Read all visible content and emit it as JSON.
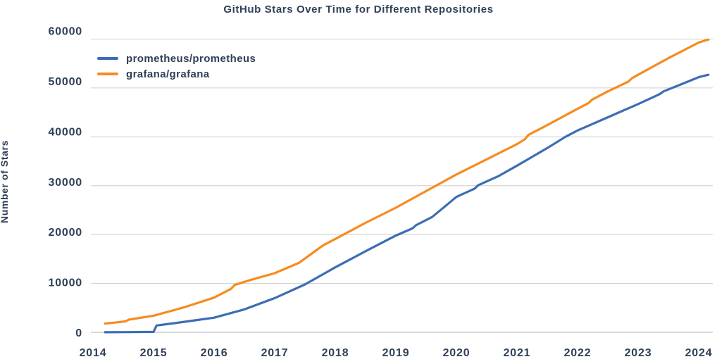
{
  "title": "GitHub Stars Over Time for Different Repositories",
  "colors": {
    "text": "#2f4058",
    "grid": "#cdcdcd",
    "zero_line": "#b3b3b3",
    "background": "#ffffff",
    "prometheus_blue": "#3c6db4",
    "grafana_orange": "#f78b1f"
  },
  "chart_data": {
    "type": "line",
    "title": "GitHub Stars Over Time for Different Repositories",
    "xlabel": "",
    "ylabel": "Number of Stars",
    "x_ticks": [
      2014,
      2015,
      2016,
      2017,
      2018,
      2019,
      2020,
      2021,
      2022,
      2023,
      2024
    ],
    "y_ticks": [
      0,
      10000,
      20000,
      30000,
      40000,
      50000,
      60000
    ],
    "xlim": [
      2013.97,
      2024.23
    ],
    "ylim": [
      0,
      60000
    ],
    "grid": "horizontal-only",
    "legend_position": "upper-left-inside",
    "series": [
      {
        "name": "prometheus/prometheus",
        "color": "#3c6db4",
        "points": [
          [
            2014.2,
            20
          ],
          [
            2014.6,
            50
          ],
          [
            2015.0,
            90
          ],
          [
            2015.05,
            1400
          ],
          [
            2015.3,
            1800
          ],
          [
            2015.6,
            2300
          ],
          [
            2016.0,
            3000
          ],
          [
            2016.5,
            4700
          ],
          [
            2017.0,
            7000
          ],
          [
            2017.5,
            9800
          ],
          [
            2018.0,
            13300
          ],
          [
            2018.5,
            16600
          ],
          [
            2019.0,
            19800
          ],
          [
            2019.28,
            21300
          ],
          [
            2019.33,
            21900
          ],
          [
            2019.6,
            23600
          ],
          [
            2020.0,
            27700
          ],
          [
            2020.3,
            29400
          ],
          [
            2020.36,
            30100
          ],
          [
            2020.7,
            32000
          ],
          [
            2021.0,
            34100
          ],
          [
            2021.5,
            37700
          ],
          [
            2021.8,
            40000
          ],
          [
            2022.0,
            41300
          ],
          [
            2022.5,
            44000
          ],
          [
            2023.0,
            46700
          ],
          [
            2023.35,
            48700
          ],
          [
            2023.42,
            49300
          ],
          [
            2023.7,
            50700
          ],
          [
            2024.0,
            52200
          ],
          [
            2024.16,
            52700
          ]
        ]
      },
      {
        "name": "grafana/grafana",
        "color": "#f78b1f",
        "points": [
          [
            2014.2,
            1800
          ],
          [
            2014.4,
            2050
          ],
          [
            2014.54,
            2250
          ],
          [
            2014.59,
            2600
          ],
          [
            2015.0,
            3400
          ],
          [
            2015.5,
            5100
          ],
          [
            2016.0,
            7100
          ],
          [
            2016.28,
            8900
          ],
          [
            2016.34,
            9700
          ],
          [
            2016.6,
            10700
          ],
          [
            2017.0,
            12100
          ],
          [
            2017.4,
            14200
          ],
          [
            2017.8,
            17800
          ],
          [
            2018.0,
            19100
          ],
          [
            2018.5,
            22400
          ],
          [
            2019.0,
            25500
          ],
          [
            2019.5,
            28900
          ],
          [
            2020.0,
            32300
          ],
          [
            2020.5,
            35400
          ],
          [
            2021.0,
            38500
          ],
          [
            2021.13,
            39500
          ],
          [
            2021.19,
            40400
          ],
          [
            2021.5,
            42400
          ],
          [
            2021.95,
            45400
          ],
          [
            2022.18,
            46900
          ],
          [
            2022.24,
            47600
          ],
          [
            2022.5,
            49300
          ],
          [
            2022.84,
            51300
          ],
          [
            2022.9,
            52000
          ],
          [
            2023.0,
            52700
          ],
          [
            2023.5,
            56100
          ],
          [
            2024.0,
            59300
          ],
          [
            2024.16,
            59900
          ]
        ]
      }
    ]
  }
}
